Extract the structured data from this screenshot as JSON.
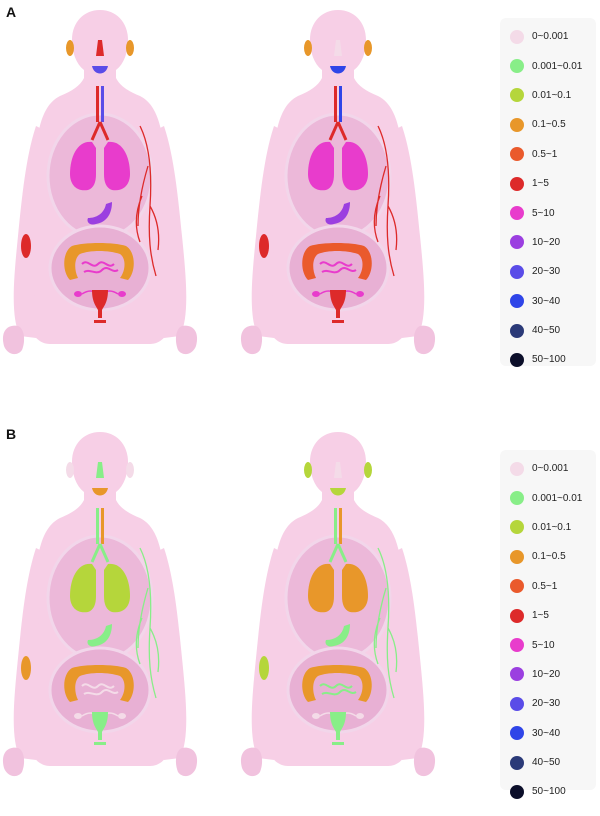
{
  "colors": {
    "skin": "#f7cfe6",
    "torso_outline": "#f2d6ea",
    "cavity": "#ecb8d9",
    "cavity_lower": "#e8b0d4"
  },
  "legend_bins": [
    {
      "label": "0~0.001",
      "color": "#f4dbe8"
    },
    {
      "label": "0.001~0.01",
      "color": "#88ee88"
    },
    {
      "label": "0.01~0.1",
      "color": "#b5d63b"
    },
    {
      "label": "0.1~0.5",
      "color": "#e8972a"
    },
    {
      "label": "0.5~1",
      "color": "#ea5a2c"
    },
    {
      "label": "1~5",
      "color": "#dd2a2a"
    },
    {
      "label": "5~10",
      "color": "#e83ccc"
    },
    {
      "label": "10~20",
      "color": "#9b3fe0"
    },
    {
      "label": "20~30",
      "color": "#5a4ce8"
    },
    {
      "label": "30~40",
      "color": "#2f45e8"
    },
    {
      "label": "40~50",
      "color": "#2b3a78"
    },
    {
      "label": "50~100",
      "color": "#0c0f2a"
    }
  ],
  "panels": [
    {
      "letter": "A",
      "figures": [
        {
          "ear": "0.1~0.5",
          "nasal": "1~5",
          "mouth": "20~30",
          "trachea": "1~5",
          "esophagus": "20~30",
          "lung": "5~10",
          "stomach": "10~20",
          "colon": "0.1~0.5",
          "small_intestine": "5~10",
          "uterus": "1~5",
          "ovary": "5~10",
          "vessels": "1~5",
          "arm_patch": "1~5"
        },
        {
          "ear": "0.1~0.5",
          "nasal": "0~0.001",
          "mouth": "30~40",
          "trachea": "1~5",
          "esophagus": "30~40",
          "lung": "5~10",
          "stomach": "10~20",
          "colon": "0.5~1",
          "small_intestine": "5~10",
          "uterus": "1~5",
          "ovary": "5~10",
          "vessels": "1~5",
          "arm_patch": "1~5"
        }
      ]
    },
    {
      "letter": "B",
      "figures": [
        {
          "ear": "0~0.001",
          "nasal": "0.001~0.01",
          "mouth": "0.1~0.5",
          "trachea": "0.001~0.01",
          "esophagus": "0.1~0.5",
          "lung": "0.01~0.1",
          "stomach": "0.001~0.01",
          "colon": "0.1~0.5",
          "small_intestine": "0~0.001",
          "uterus": "0.001~0.01",
          "ovary": "0~0.001",
          "vessels": "0.001~0.01",
          "arm_patch": "0.1~0.5"
        },
        {
          "ear": "0.01~0.1",
          "nasal": "0~0.001",
          "mouth": "0.01~0.1",
          "trachea": "0.001~0.01",
          "esophagus": "0.1~0.5",
          "lung": "0.1~0.5",
          "stomach": "0.001~0.01",
          "colon": "0.1~0.5",
          "small_intestine": "0.001~0.01",
          "uterus": "0.001~0.01",
          "ovary": "0~0.001",
          "vessels": "0.001~0.01",
          "arm_patch": "0.01~0.1"
        }
      ]
    }
  ]
}
